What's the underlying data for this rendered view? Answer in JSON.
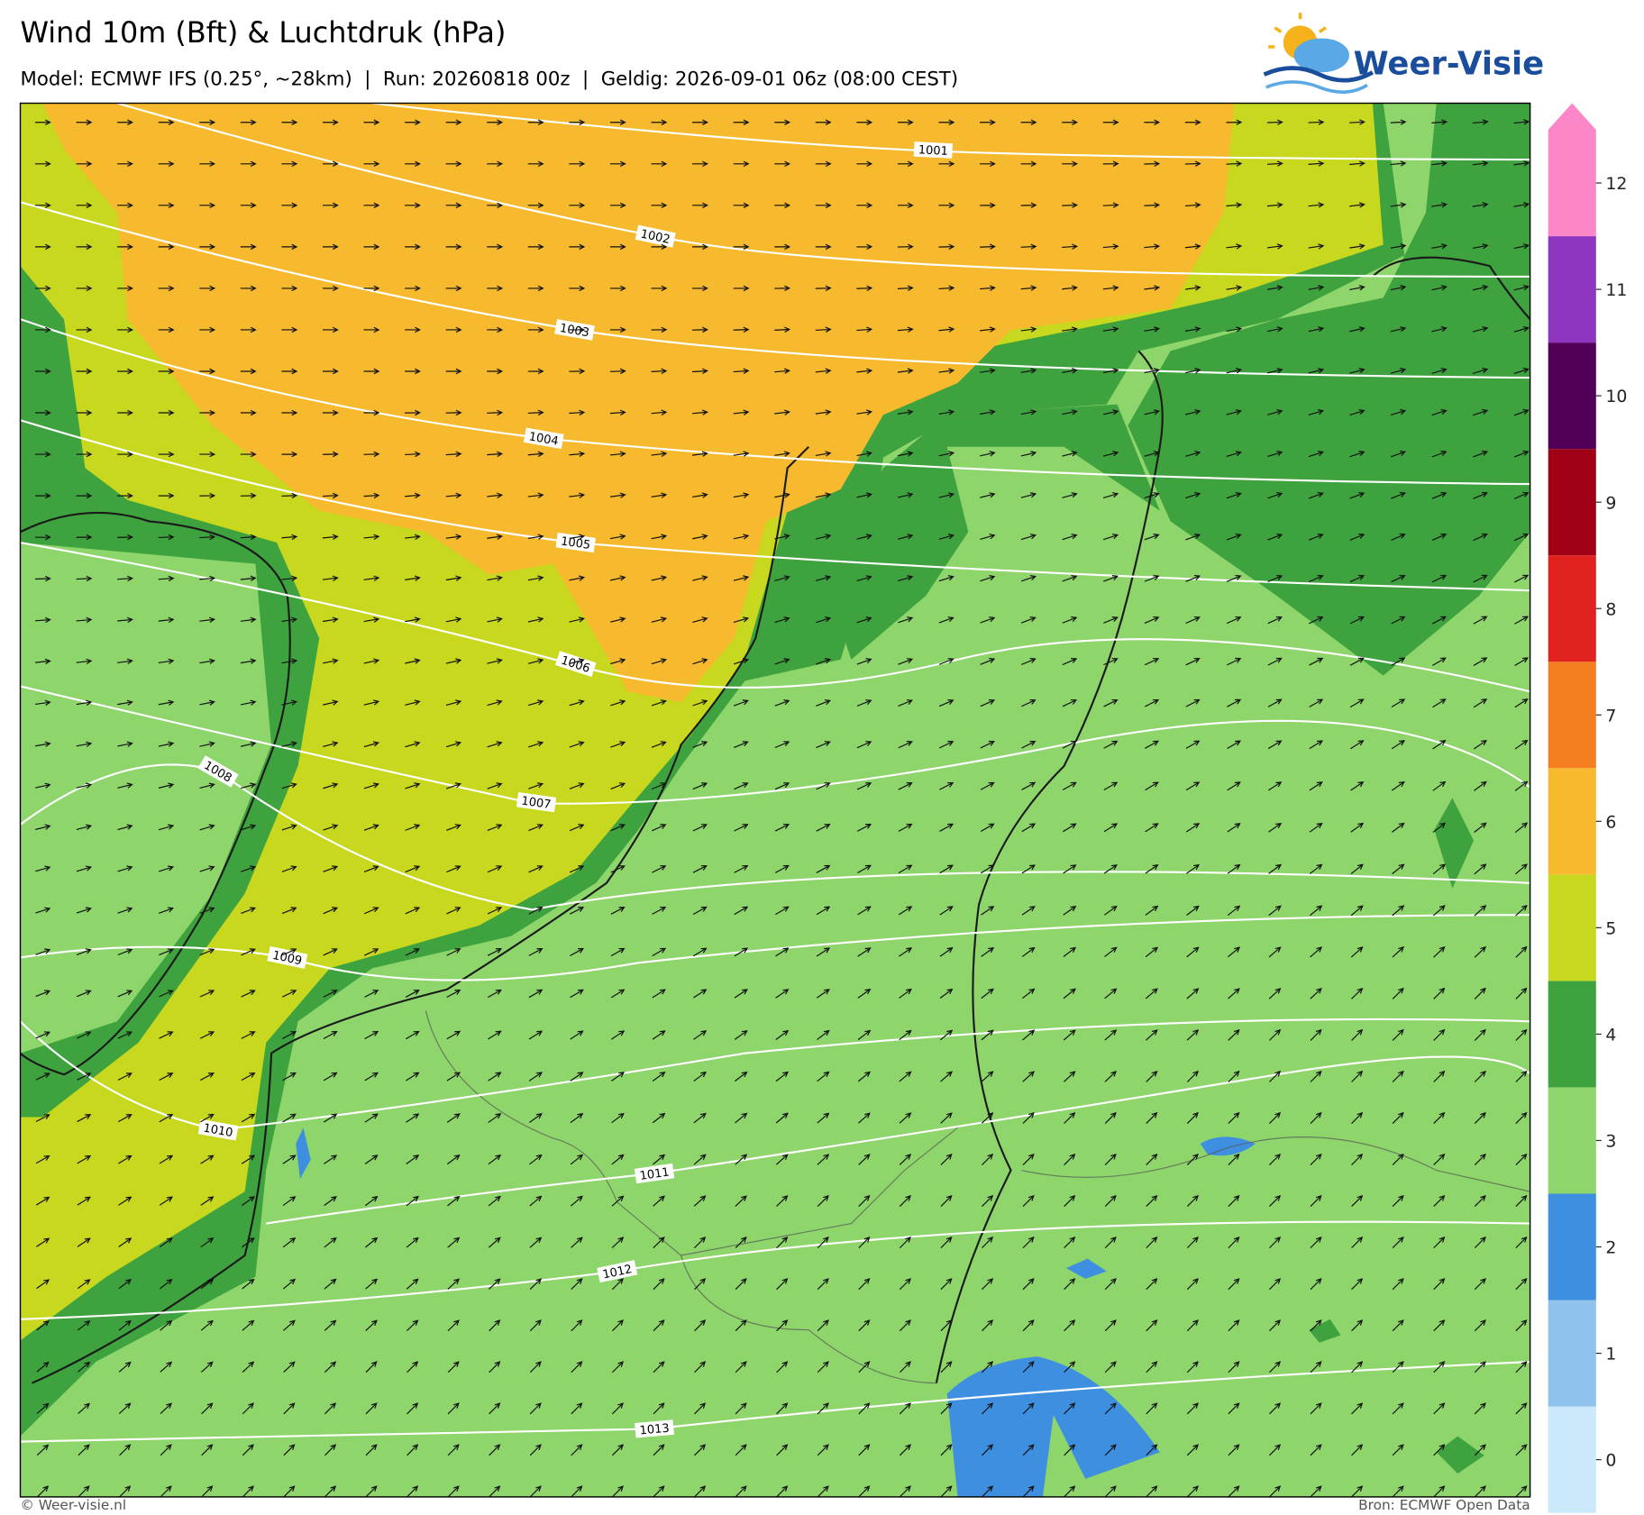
{
  "header": {
    "title": "Wind 10m (Bft) & Luchtdruk (hPa)",
    "subtitle": "Model: ECMWF IFS (0.25°, ~28km)  |  Run: 20260818 00z  |  Geldig: 2026-09-01 06z (08:00 CEST)"
  },
  "logo": "Weer-Visie",
  "isobars": [
    1001,
    1002,
    1003,
    1004,
    1005,
    1006,
    1007,
    1008,
    1009,
    1010,
    1011,
    1012,
    1013
  ],
  "colorbar": {
    "ticks": [
      0,
      1,
      2,
      3,
      4,
      5,
      6,
      7,
      8,
      9,
      10,
      11,
      12
    ],
    "colors": [
      "#cce8fb",
      "#8fc3ee",
      "#3f8fe0",
      "#8ed66b",
      "#3ea33e",
      "#c8d81e",
      "#f7b92e",
      "#f47f20",
      "#e0231f",
      "#a00016",
      "#520057",
      "#8e35c0",
      "#fb87c8"
    ]
  },
  "footer": {
    "left": "© Weer-visie.nl",
    "right": "Bron: ECMWF Open Data"
  }
}
